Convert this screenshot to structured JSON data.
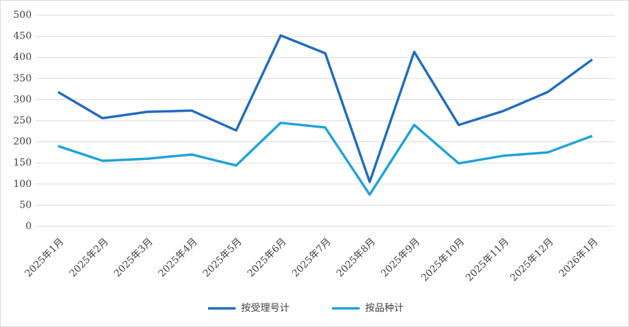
{
  "chart_data": {
    "type": "line",
    "categories": [
      "2025年1月",
      "2025年2月",
      "2025年3月",
      "2025年4月",
      "2025年5月",
      "2025年6月",
      "2025年7月",
      "2025年8月",
      "2025年9月",
      "2025年10月",
      "2025年11月",
      "2025年12月",
      "2026年1月"
    ],
    "series": [
      {
        "name": "按受理号计",
        "color": "#1f6cbf",
        "values": [
          318,
          256,
          271,
          274,
          227,
          452,
          410,
          105,
          413,
          240,
          273,
          318,
          395
        ]
      },
      {
        "name": "按品种计",
        "color": "#1ea3d8",
        "values": [
          190,
          155,
          160,
          170,
          144,
          245,
          234,
          75,
          240,
          149,
          167,
          175,
          214
        ]
      }
    ],
    "ylim": [
      0,
      500
    ],
    "yticks": [
      0,
      50,
      100,
      150,
      200,
      250,
      300,
      350,
      400,
      450,
      500
    ],
    "grid": true
  }
}
